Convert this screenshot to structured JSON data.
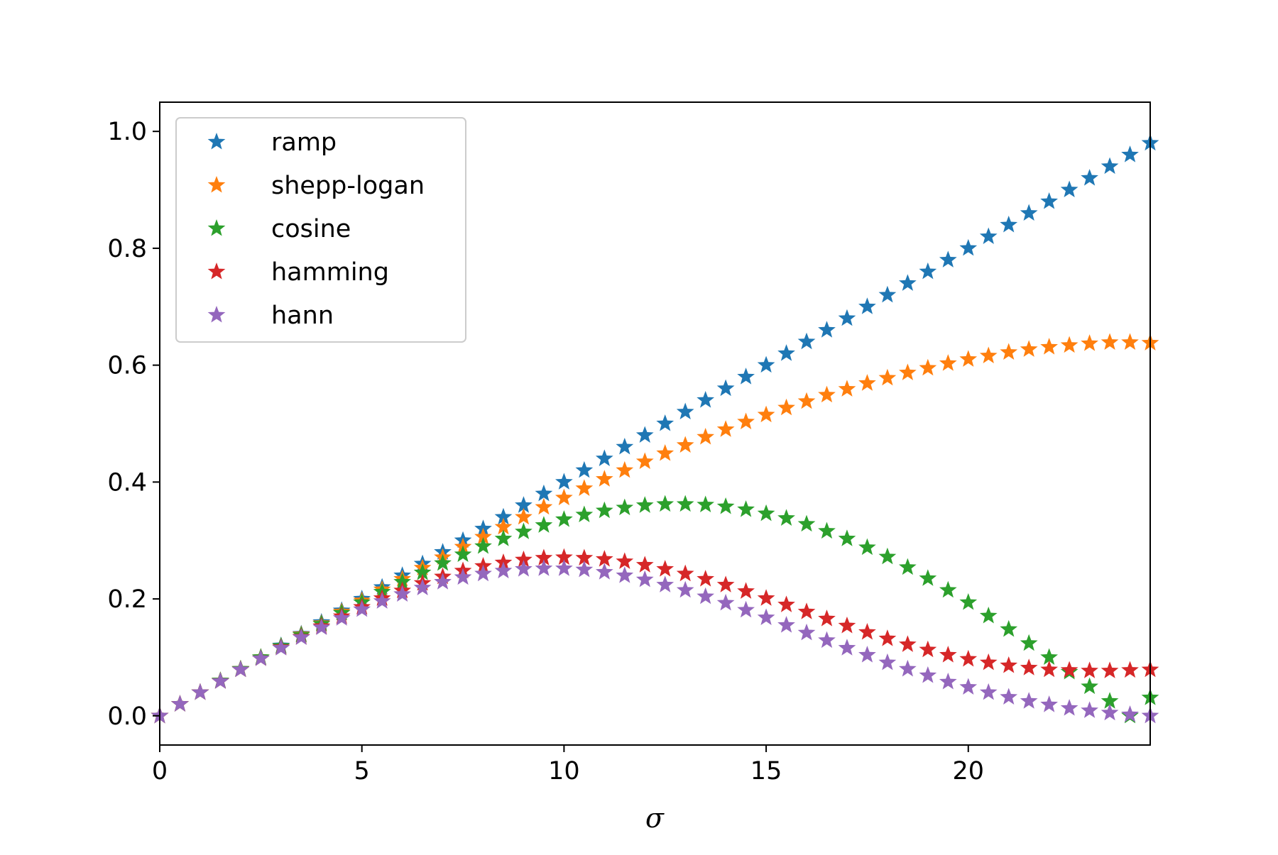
{
  "chart_data": {
    "type": "scatter",
    "marker": "star",
    "xlabel": "σ",
    "ylabel": "",
    "title": "",
    "xlim": [
      0,
      24.5
    ],
    "ylim": [
      -0.05,
      1.05
    ],
    "xticks": [
      0,
      5,
      10,
      15,
      20
    ],
    "yticks": [
      0.0,
      0.2,
      0.4,
      0.6,
      0.8,
      1.0
    ],
    "xtick_labels": [
      "0",
      "5",
      "10",
      "15",
      "20"
    ],
    "ytick_labels": [
      "0.0",
      "0.2",
      "0.4",
      "0.6",
      "0.8",
      "1.0"
    ],
    "grid": false,
    "legend_position": "top-left",
    "x": [
      0,
      0.5,
      1,
      1.5,
      2,
      2.5,
      3,
      3.5,
      4,
      4.5,
      5,
      5.5,
      6,
      6.5,
      7,
      7.5,
      8,
      8.5,
      9,
      9.5,
      10,
      10.5,
      11,
      11.5,
      12,
      12.5,
      13,
      13.5,
      14,
      14.5,
      15,
      15.5,
      16,
      16.5,
      17,
      17.5,
      18,
      18.5,
      19,
      19.5,
      20,
      20.5,
      21,
      21.5,
      22,
      22.5,
      23,
      23.5,
      24,
      24.5
    ],
    "series": [
      {
        "name": "ramp",
        "color": "#1f77b4",
        "values": [
          0.0,
          0.02,
          0.04,
          0.06,
          0.08,
          0.1,
          0.12,
          0.14,
          0.16,
          0.18,
          0.2,
          0.22,
          0.24,
          0.26,
          0.28,
          0.3,
          0.32,
          0.34,
          0.36,
          0.38,
          0.4,
          0.42,
          0.44,
          0.46,
          0.48,
          0.5,
          0.52,
          0.54,
          0.56,
          0.58,
          0.6,
          0.62,
          0.64,
          0.66,
          0.68,
          0.7,
          0.72,
          0.74,
          0.76,
          0.78,
          0.8,
          0.82,
          0.84,
          0.86,
          0.88,
          0.9,
          0.92,
          0.94,
          0.96,
          0.98
        ]
      },
      {
        "name": "shepp-logan",
        "color": "#ff7f0e",
        "values": [
          0.0,
          0.02,
          0.04,
          0.06,
          0.08,
          0.1,
          0.119,
          0.139,
          0.158,
          0.178,
          0.197,
          0.216,
          0.234,
          0.253,
          0.271,
          0.289,
          0.306,
          0.323,
          0.34,
          0.357,
          0.373,
          0.389,
          0.405,
          0.42,
          0.435,
          0.449,
          0.463,
          0.477,
          0.49,
          0.503,
          0.515,
          0.527,
          0.538,
          0.549,
          0.559,
          0.569,
          0.578,
          0.587,
          0.595,
          0.603,
          0.61,
          0.616,
          0.622,
          0.627,
          0.631,
          0.634,
          0.637,
          0.639,
          0.639,
          0.638
        ]
      },
      {
        "name": "cosine",
        "color": "#2ca02c",
        "values": [
          0.0,
          0.02,
          0.04,
          0.06,
          0.08,
          0.1,
          0.119,
          0.138,
          0.157,
          0.176,
          0.194,
          0.212,
          0.229,
          0.245,
          0.261,
          0.276,
          0.29,
          0.303,
          0.315,
          0.326,
          0.336,
          0.344,
          0.351,
          0.356,
          0.36,
          0.362,
          0.362,
          0.361,
          0.358,
          0.353,
          0.346,
          0.338,
          0.328,
          0.316,
          0.303,
          0.288,
          0.272,
          0.254,
          0.235,
          0.215,
          0.194,
          0.171,
          0.148,
          0.124,
          0.1,
          0.075,
          0.05,
          0.025,
          0.0,
          0.031
        ]
      },
      {
        "name": "hamming",
        "color": "#d62728",
        "values": [
          0.0,
          0.02,
          0.04,
          0.059,
          0.079,
          0.098,
          0.117,
          0.135,
          0.153,
          0.17,
          0.186,
          0.201,
          0.214,
          0.227,
          0.238,
          0.248,
          0.256,
          0.262,
          0.267,
          0.27,
          0.271,
          0.27,
          0.268,
          0.264,
          0.258,
          0.251,
          0.243,
          0.234,
          0.224,
          0.213,
          0.201,
          0.19,
          0.178,
          0.166,
          0.154,
          0.143,
          0.132,
          0.122,
          0.113,
          0.104,
          0.097,
          0.091,
          0.086,
          0.082,
          0.079,
          0.078,
          0.077,
          0.077,
          0.078,
          0.079
        ]
      },
      {
        "name": "hann",
        "color": "#9467bd",
        "values": [
          0.0,
          0.02,
          0.04,
          0.059,
          0.079,
          0.098,
          0.116,
          0.134,
          0.151,
          0.167,
          0.182,
          0.196,
          0.208,
          0.219,
          0.229,
          0.237,
          0.243,
          0.248,
          0.251,
          0.252,
          0.252,
          0.25,
          0.246,
          0.24,
          0.233,
          0.224,
          0.215,
          0.204,
          0.193,
          0.181,
          0.168,
          0.155,
          0.142,
          0.129,
          0.116,
          0.104,
          0.091,
          0.08,
          0.069,
          0.058,
          0.049,
          0.04,
          0.032,
          0.025,
          0.019,
          0.013,
          0.009,
          0.005,
          0.002,
          0.0
        ]
      }
    ]
  }
}
